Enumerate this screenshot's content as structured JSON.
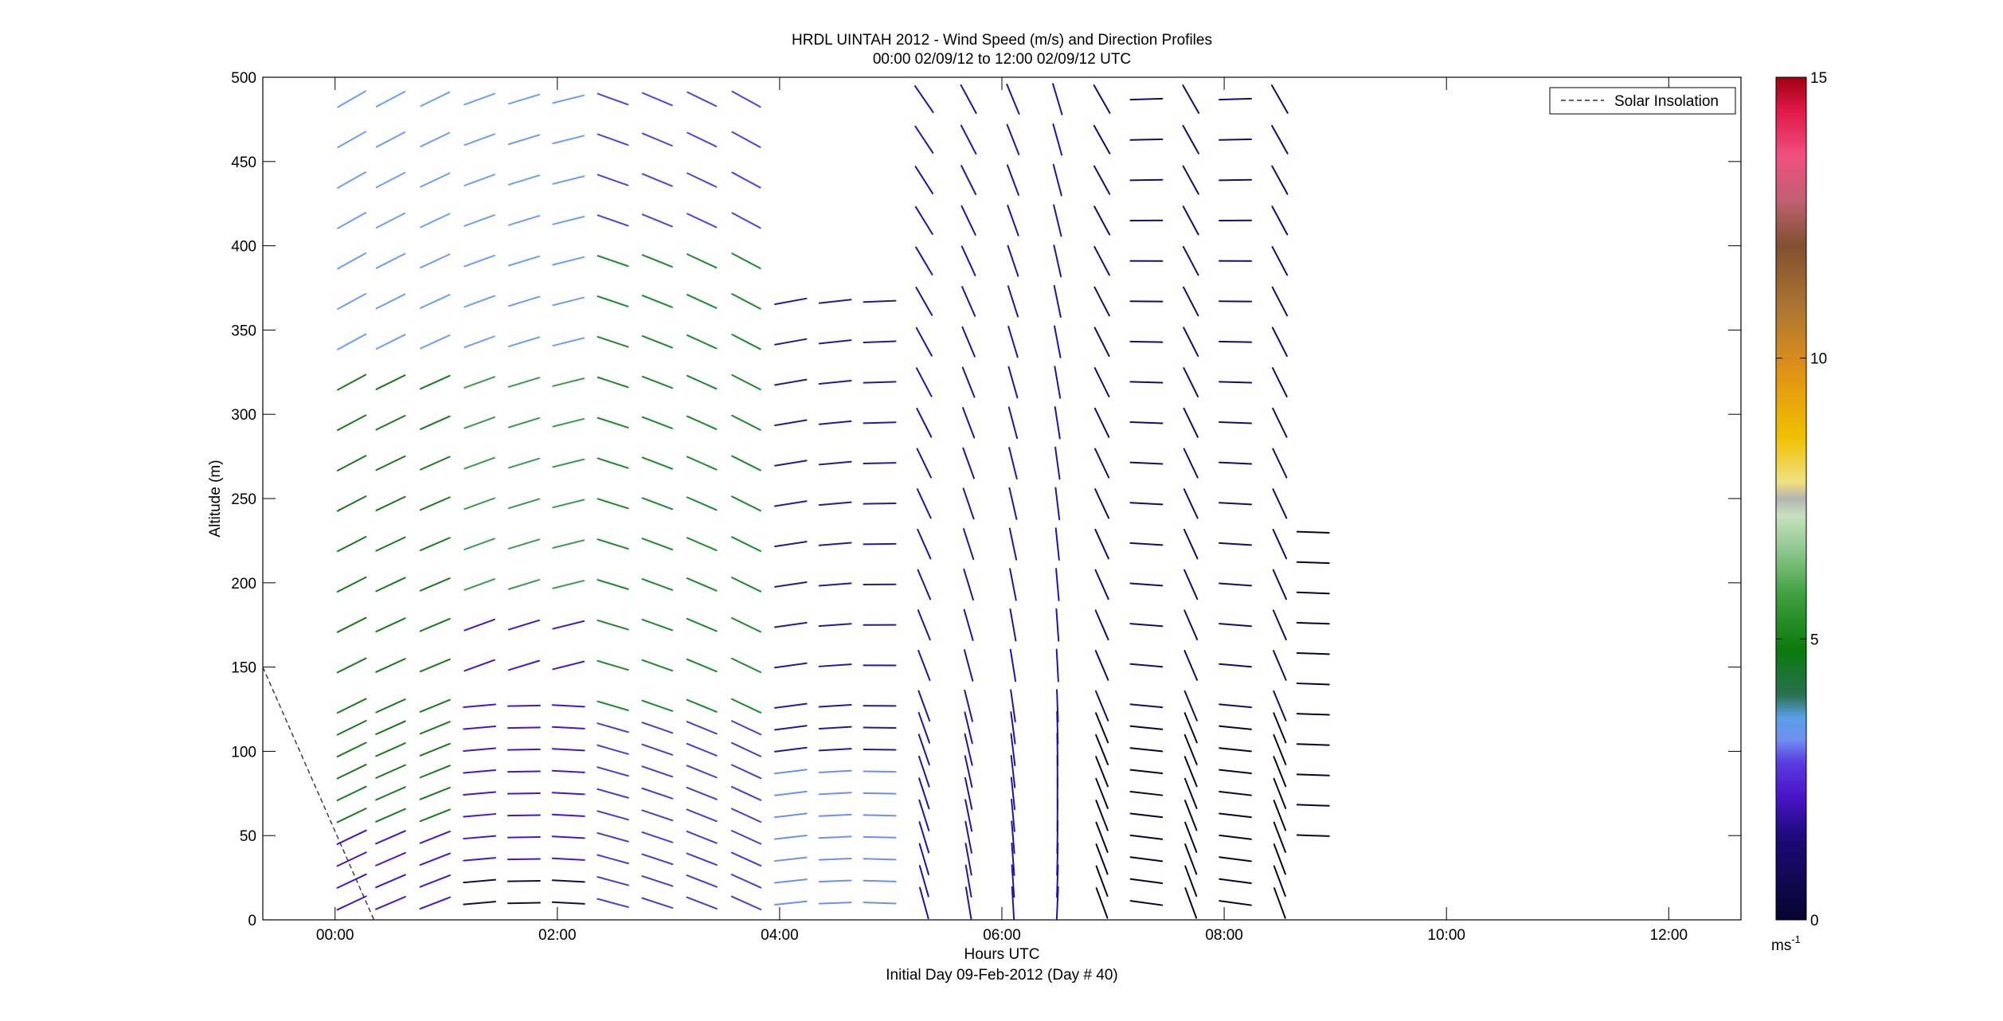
{
  "chart_data": {
    "type": "scatter",
    "subtype": "wind-barb profile plot (line segments colored by speed)",
    "title_line1": "HRDL UINTAH 2012 - Wind Speed (m/s) and Direction Profiles",
    "title_line2": "00:00 02/09/12 to 12:00 02/09/12  UTC",
    "xlabel": "Hours UTC",
    "xlabel_sub": "Initial Day 09-Feb-2012 (Day # 40)",
    "ylabel": "Altitude (m)",
    "xlim": [
      -0.65,
      12.65
    ],
    "ylim": [
      0,
      500
    ],
    "x_ticks": [
      0,
      2,
      4,
      6,
      8,
      10,
      12
    ],
    "x_tick_labels": [
      "00:00",
      "02:00",
      "04:00",
      "06:00",
      "08:00",
      "10:00",
      "12:00"
    ],
    "y_ticks": [
      0,
      50,
      100,
      150,
      200,
      250,
      300,
      350,
      400,
      450,
      500
    ],
    "y_tick_labels": [
      "0",
      "50",
      "100",
      "150",
      "200",
      "250",
      "300",
      "350",
      "400",
      "450",
      "500"
    ],
    "grid": false,
    "legend_position": "top-right",
    "legend": [
      {
        "name": "Solar Insolation",
        "style": "dashed",
        "color": "#333333"
      }
    ],
    "solar_insolation_line": {
      "x": [
        -0.65,
        0.35
      ],
      "y": [
        150,
        0
      ]
    },
    "colorbar": {
      "label": "ms",
      "label_sup": "-1",
      "min": 0,
      "max": 15,
      "ticks": [
        0,
        5,
        10,
        15
      ],
      "tick_labels": [
        "0",
        "5",
        "10",
        "15"
      ],
      "colors": [
        "#05052e",
        "#1e0a7a",
        "#4a14c8",
        "#5a3ce0",
        "#6e8ef0",
        "#5aa0e8",
        "#2a7050",
        "#0a7a0a",
        "#40a040",
        "#90c890",
        "#c8e0c0",
        "#b4b4b4",
        "#f0e080",
        "#f0c000",
        "#e09018",
        "#b07830",
        "#805030",
        "#c06070",
        "#f05080",
        "#e01848",
        "#a00010"
      ],
      "color_stops": [
        0,
        1.5,
        2.2,
        2.8,
        3.2,
        3.6,
        4.0,
        4.8,
        5.8,
        6.6,
        7.2,
        7.5,
        7.8,
        8.6,
        9.8,
        10.8,
        12.0,
        12.8,
        13.6,
        14.4,
        15
      ]
    },
    "series": [
      {
        "hours": [
          0.15,
          0.5,
          0.9
        ],
        "alt_range": [
          10,
          490
        ],
        "speed_ms": 2.6,
        "direction": "lower levels violet, mid levels green 4-5 m/s, upper levels light blue"
      },
      {
        "hours": [
          1.3,
          1.7,
          2.1
        ],
        "alt_range": [
          10,
          490
        ],
        "speed_ms": 3.2,
        "direction": "mixed violet/blue/green, near-surface dark"
      },
      {
        "hours": [
          2.5,
          2.9,
          3.3,
          3.7
        ],
        "alt_range": [
          10,
          490
        ],
        "speed_ms": 3.6,
        "direction": "blue-green, winds from the NW quadrant"
      },
      {
        "hours": [
          4.1,
          4.5,
          4.9
        ],
        "alt_range": [
          10,
          390
        ],
        "speed_ms": 1.6,
        "direction": "dark blue/violet, light winds"
      },
      {
        "hours": [
          5.3,
          5.7,
          6.1,
          6.5
        ],
        "alt_range": [
          10,
          490
        ],
        "speed_ms": 1.2,
        "direction": "dark violet, near-vertical barbs, calm"
      },
      {
        "hours": [
          6.9,
          7.3,
          7.7,
          8.1,
          8.5
        ],
        "alt_range": [
          10,
          490
        ],
        "speed_ms": 0.6,
        "direction": "very dark navy, nearly calm"
      }
    ]
  }
}
